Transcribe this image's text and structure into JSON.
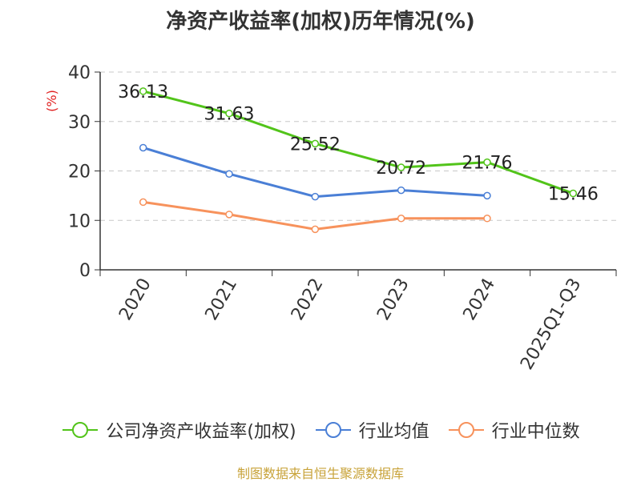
{
  "title": "净资产收益率(加权)历年情况(%)",
  "source": "制图数据来自恒生聚源数据库",
  "chart_data": {
    "type": "line",
    "categories": [
      "2020",
      "2021",
      "2022",
      "2023",
      "2024",
      "2025Q1-Q3"
    ],
    "ylabel": "(%)",
    "ylim": [
      0,
      40
    ],
    "yticks": [
      0,
      10,
      20,
      30,
      40
    ],
    "grid": true,
    "legend_position": "bottom",
    "series": [
      {
        "name": "公司净资产收益率(加权)",
        "color": "#52c41a",
        "values": [
          36.13,
          31.63,
          25.52,
          20.72,
          21.76,
          15.46
        ],
        "labels": [
          "36.13",
          "31.63",
          "25.52",
          "20.72",
          "21.76",
          "15.46"
        ]
      },
      {
        "name": "行业均值",
        "color": "#4a7fd6",
        "values": [
          24.7,
          19.4,
          14.8,
          16.1,
          15.0,
          null
        ]
      },
      {
        "name": "行业中位数",
        "color": "#f7925c",
        "values": [
          13.7,
          11.2,
          8.2,
          10.4,
          10.4,
          null
        ]
      }
    ]
  }
}
